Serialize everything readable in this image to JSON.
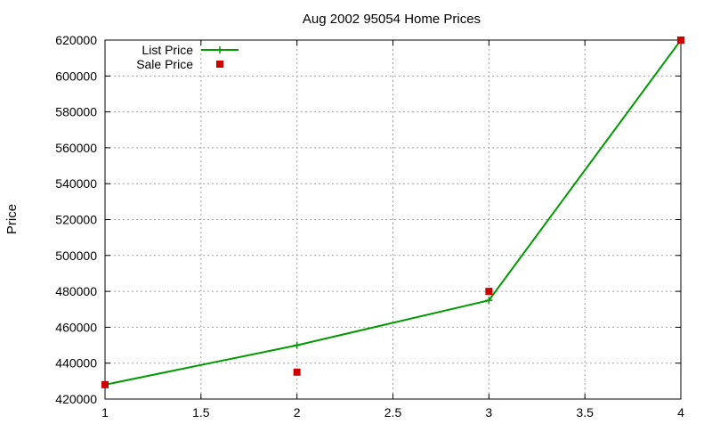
{
  "chart_data": {
    "type": "line",
    "title": "Aug 2002 95054 Home Prices",
    "xlabel": "",
    "ylabel": "Price",
    "xlim": [
      1,
      4
    ],
    "ylim": [
      420000,
      620000
    ],
    "x_ticks": [
      1,
      1.5,
      2,
      2.5,
      3,
      3.5,
      4
    ],
    "x_tick_labels": [
      "1",
      "1.5",
      "2",
      "2.5",
      "3",
      "3.5",
      "4"
    ],
    "y_ticks": [
      420000,
      440000,
      460000,
      480000,
      500000,
      520000,
      540000,
      560000,
      580000,
      600000,
      620000
    ],
    "y_tick_labels": [
      "420000",
      "440000",
      "460000",
      "480000",
      "500000",
      "520000",
      "540000",
      "560000",
      "580000",
      "600000",
      "620000"
    ],
    "grid": true,
    "legend_position": "top-left",
    "series": [
      {
        "name": "List Price",
        "style": "linespoints",
        "marker": "plus",
        "color": "#009900",
        "x": [
          1,
          2,
          3,
          4
        ],
        "y": [
          428000,
          450000,
          475000,
          620000
        ]
      },
      {
        "name": "Sale Price",
        "style": "points",
        "marker": "square",
        "color": "#cc0000",
        "x": [
          1,
          2,
          3,
          4
        ],
        "y": [
          428000,
          435000,
          480000,
          620000
        ]
      }
    ]
  }
}
